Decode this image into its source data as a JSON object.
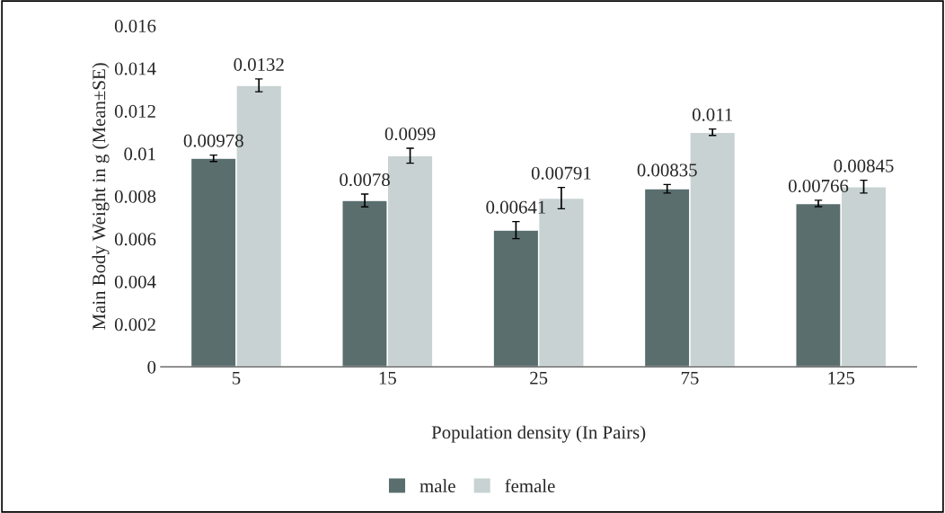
{
  "chart_data": {
    "type": "bar",
    "xlabel": "Population density (In Pairs)",
    "ylabel": "Main Body Weight in g (Mean±SE)",
    "categories": [
      "5",
      "15",
      "25",
      "75",
      "125"
    ],
    "series": [
      {
        "name": "male",
        "color": "#5a6e6e",
        "values": [
          0.00978,
          0.0078,
          0.00641,
          0.00835,
          0.00766
        ],
        "errors": [
          0.00015,
          0.0003,
          0.0004,
          0.0002,
          0.00015
        ]
      },
      {
        "name": "female",
        "color": "#c8d2d2",
        "values": [
          0.0132,
          0.0099,
          0.00791,
          0.011,
          0.00845
        ],
        "errors": [
          0.0003,
          0.00035,
          0.0005,
          0.00015,
          0.0003
        ]
      }
    ],
    "ylim": [
      0,
      0.016
    ],
    "yticks": [
      0,
      0.002,
      0.004,
      0.006,
      0.008,
      0.01,
      0.012,
      0.014,
      0.016
    ],
    "data_labels": true,
    "grid": false,
    "legend": "bottom"
  }
}
